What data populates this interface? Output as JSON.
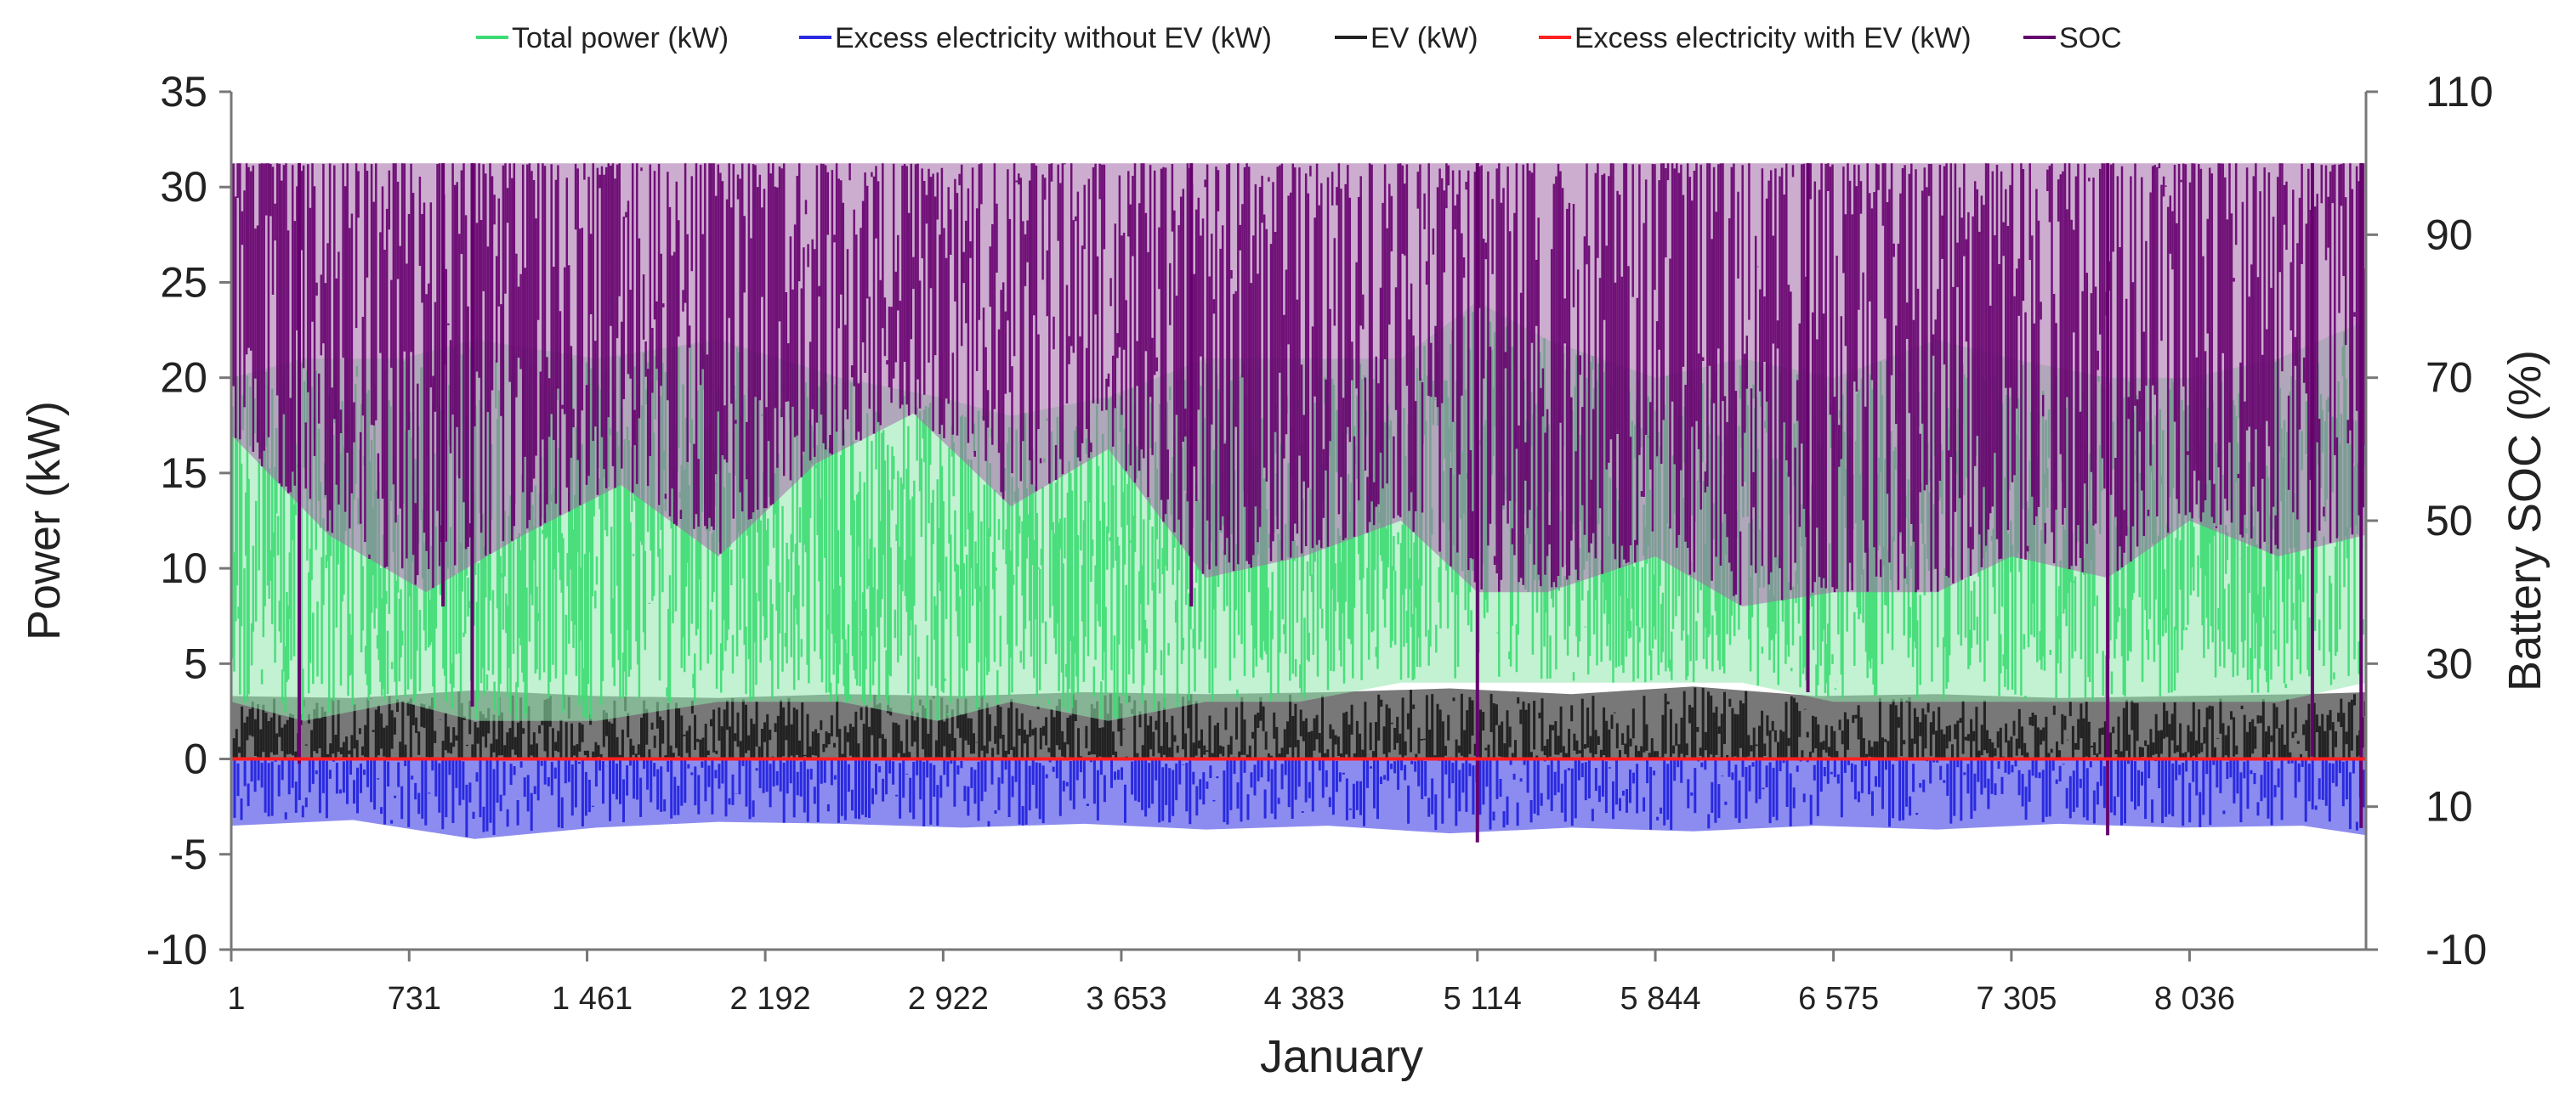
{
  "chart_data": {
    "type": "line",
    "title": "",
    "xlabel": "January",
    "ylabel": "Power (kW)",
    "y2label": "Battery  SOC (%)",
    "legend_position": "top",
    "x_range": [
      1,
      8760
    ],
    "ylim": [
      -10,
      35
    ],
    "y2lim": [
      -10,
      110
    ],
    "y_ticks": [
      "-10",
      "-5",
      "0",
      "5",
      "10",
      "15",
      "20",
      "25",
      "30",
      "35"
    ],
    "y2_ticks": [
      "-10",
      "10",
      "30",
      "50",
      "70",
      "90",
      "110"
    ],
    "x_ticks": [
      {
        "value": 1,
        "label": "1"
      },
      {
        "value": 731,
        "label": "731"
      },
      {
        "value": 1461,
        "label": "1 461"
      },
      {
        "value": 2192,
        "label": "2 192"
      },
      {
        "value": 2922,
        "label": "2 922"
      },
      {
        "value": 3653,
        "label": "3 653"
      },
      {
        "value": 4383,
        "label": "4 383"
      },
      {
        "value": 5114,
        "label": "5 114"
      },
      {
        "value": 5844,
        "label": "5 844"
      },
      {
        "value": 6575,
        "label": "6 575"
      },
      {
        "value": 7305,
        "label": "7 305"
      },
      {
        "value": 8036,
        "label": "8 036"
      }
    ],
    "series": [
      {
        "name": "Total power (kW)",
        "axis": "left",
        "color": "#3ddc73",
        "fill": "#8fe8ac",
        "x": [
          1,
          300,
          700,
          1000,
          1500,
          2000,
          2500,
          2900,
          3200,
          3600,
          4000,
          4383,
          4800,
          5114,
          5400,
          5844,
          6200,
          6575,
          7000,
          7305,
          7700,
          8036,
          8400,
          8760
        ],
        "low": [
          3,
          2,
          3,
          2,
          2,
          3,
          3,
          2,
          3,
          2,
          3,
          3,
          4,
          4,
          4,
          4,
          4,
          3,
          3,
          3,
          3,
          3,
          3,
          4
        ],
        "high": [
          20,
          21,
          21,
          22,
          21,
          22,
          20,
          19,
          18,
          19,
          21,
          21,
          21,
          24,
          22,
          20,
          21,
          20,
          22,
          21,
          20,
          20,
          21,
          23
        ]
      },
      {
        "name": "Excess electricity without EV (kW)",
        "axis": "left",
        "color": "#2a2ae0",
        "fill": "#8080ee",
        "x": [
          1,
          500,
          1000,
          1500,
          2000,
          2500,
          3000,
          3500,
          4000,
          4500,
          5000,
          5500,
          6000,
          6500,
          7000,
          7500,
          8000,
          8500,
          8760
        ],
        "low": [
          -3.5,
          -3.2,
          -4.2,
          -3.6,
          -3.3,
          -3.4,
          -3.6,
          -3.4,
          -3.7,
          -3.5,
          -3.9,
          -3.6,
          -3.8,
          -3.5,
          -3.7,
          -3.4,
          -3.6,
          -3.5,
          -4
        ],
        "high": [
          0,
          0,
          0,
          0,
          0,
          0,
          0,
          0,
          0,
          0,
          0,
          0,
          0,
          0,
          0,
          0,
          0,
          0,
          0
        ]
      },
      {
        "name": "EV (kW)",
        "axis": "left",
        "color": "#222222",
        "fill": "#606060",
        "x": [
          1,
          500,
          1000,
          1500,
          2000,
          2500,
          3000,
          3500,
          4000,
          4500,
          5000,
          5500,
          6000,
          6500,
          7000,
          7500,
          8000,
          8500,
          8760
        ],
        "low": [
          0,
          0,
          0,
          0,
          0,
          0,
          0,
          0,
          0,
          0,
          0,
          0,
          0,
          0,
          0,
          0,
          0,
          0,
          0
        ],
        "high": [
          3.3,
          3.2,
          3.6,
          3.3,
          3.2,
          3.4,
          3.3,
          3.5,
          3.4,
          3.5,
          3.7,
          3.4,
          3.8,
          3.3,
          3.4,
          3.2,
          3.3,
          3.4,
          3.5
        ]
      },
      {
        "name": "Excess electricity with EV (kW)",
        "axis": "left",
        "color": "#ff2020",
        "x": [
          1,
          8760
        ],
        "values": [
          0,
          0
        ]
      },
      {
        "name": "SOC",
        "axis": "right",
        "color": "#66006e",
        "fill": "#a46aa8",
        "x": [
          1,
          400,
          800,
          1200,
          1600,
          2000,
          2400,
          2800,
          3200,
          3600,
          4000,
          4400,
          4800,
          5114,
          5400,
          5844,
          6200,
          6575,
          7000,
          7305,
          7700,
          8036,
          8400,
          8760
        ],
        "low": [
          62,
          48,
          40,
          48,
          55,
          45,
          58,
          65,
          52,
          60,
          42,
          45,
          50,
          40,
          40,
          45,
          38,
          40,
          40,
          45,
          42,
          50,
          45,
          48
        ],
        "high": [
          100,
          100,
          100,
          100,
          100,
          100,
          100,
          100,
          100,
          100,
          100,
          100,
          100,
          100,
          100,
          100,
          100,
          100,
          100,
          100,
          100,
          100,
          100,
          100
        ],
        "drops": [
          {
            "x": 280,
            "value": 16
          },
          {
            "x": 870,
            "value": 38
          },
          {
            "x": 990,
            "value": 24
          },
          {
            "x": 3940,
            "value": 38
          },
          {
            "x": 5114,
            "value": 5
          },
          {
            "x": 6470,
            "value": 26
          },
          {
            "x": 7700,
            "value": 6
          },
          {
            "x": 8540,
            "value": 17
          },
          {
            "x": 8740,
            "value": 7
          }
        ]
      }
    ]
  }
}
